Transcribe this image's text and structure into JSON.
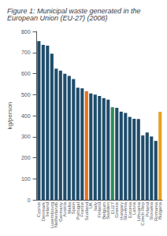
{
  "chart_data": {
    "type": "bar",
    "title": "Figure 1: Municipal waste generated in the European Union (EU-27) (2008)",
    "ylabel": "kg/person",
    "categories": [
      "Cyprus",
      "Denmark",
      "Ireland",
      "Luxembourg",
      "Netherlands",
      "Germany",
      "Austria",
      "Malta",
      "Spain",
      "Portugal",
      "France",
      "Scotland",
      "UK",
      "Italy",
      "Finland",
      "Belgium",
      "Sweden",
      "EU27",
      "Greece",
      "Hungary",
      "Slovenia",
      "Estonia",
      "Latvia",
      "Lithuania",
      "Czech Rep",
      "Poland",
      "Slovakia",
      "Romania",
      "Bulgaria"
    ],
    "values": [
      754,
      736,
      733,
      694,
      623,
      614,
      599,
      589,
      574,
      533,
      530,
      516,
      506,
      500,
      493,
      483,
      476,
      440,
      437,
      419,
      413,
      394,
      385,
      384,
      306,
      320,
      301,
      280,
      418
    ],
    "colors": [
      "#1e4d6b",
      "#1e4d6b",
      "#1e4d6b",
      "#1e4d6b",
      "#1e4d6b",
      "#1e4d6b",
      "#1e4d6b",
      "#1e4d6b",
      "#1e4d6b",
      "#1e4d6b",
      "#1e4d6b",
      "#e8711a",
      "#1e4d6b",
      "#1e4d6b",
      "#1e4d6b",
      "#1e4d6b",
      "#1e4d6b",
      "#2e8b57",
      "#1e4d6b",
      "#1e4d6b",
      "#1e4d6b",
      "#1e4d6b",
      "#1e4d6b",
      "#1e4d6b",
      "#1e4d6b",
      "#1e4d6b",
      "#1e4d6b",
      "#1e4d6b",
      "#e8a020"
    ],
    "ylim": [
      0,
      800
    ],
    "yticks": [
      0,
      100,
      200,
      300,
      400,
      500,
      600,
      700,
      800
    ],
    "grid": false
  }
}
